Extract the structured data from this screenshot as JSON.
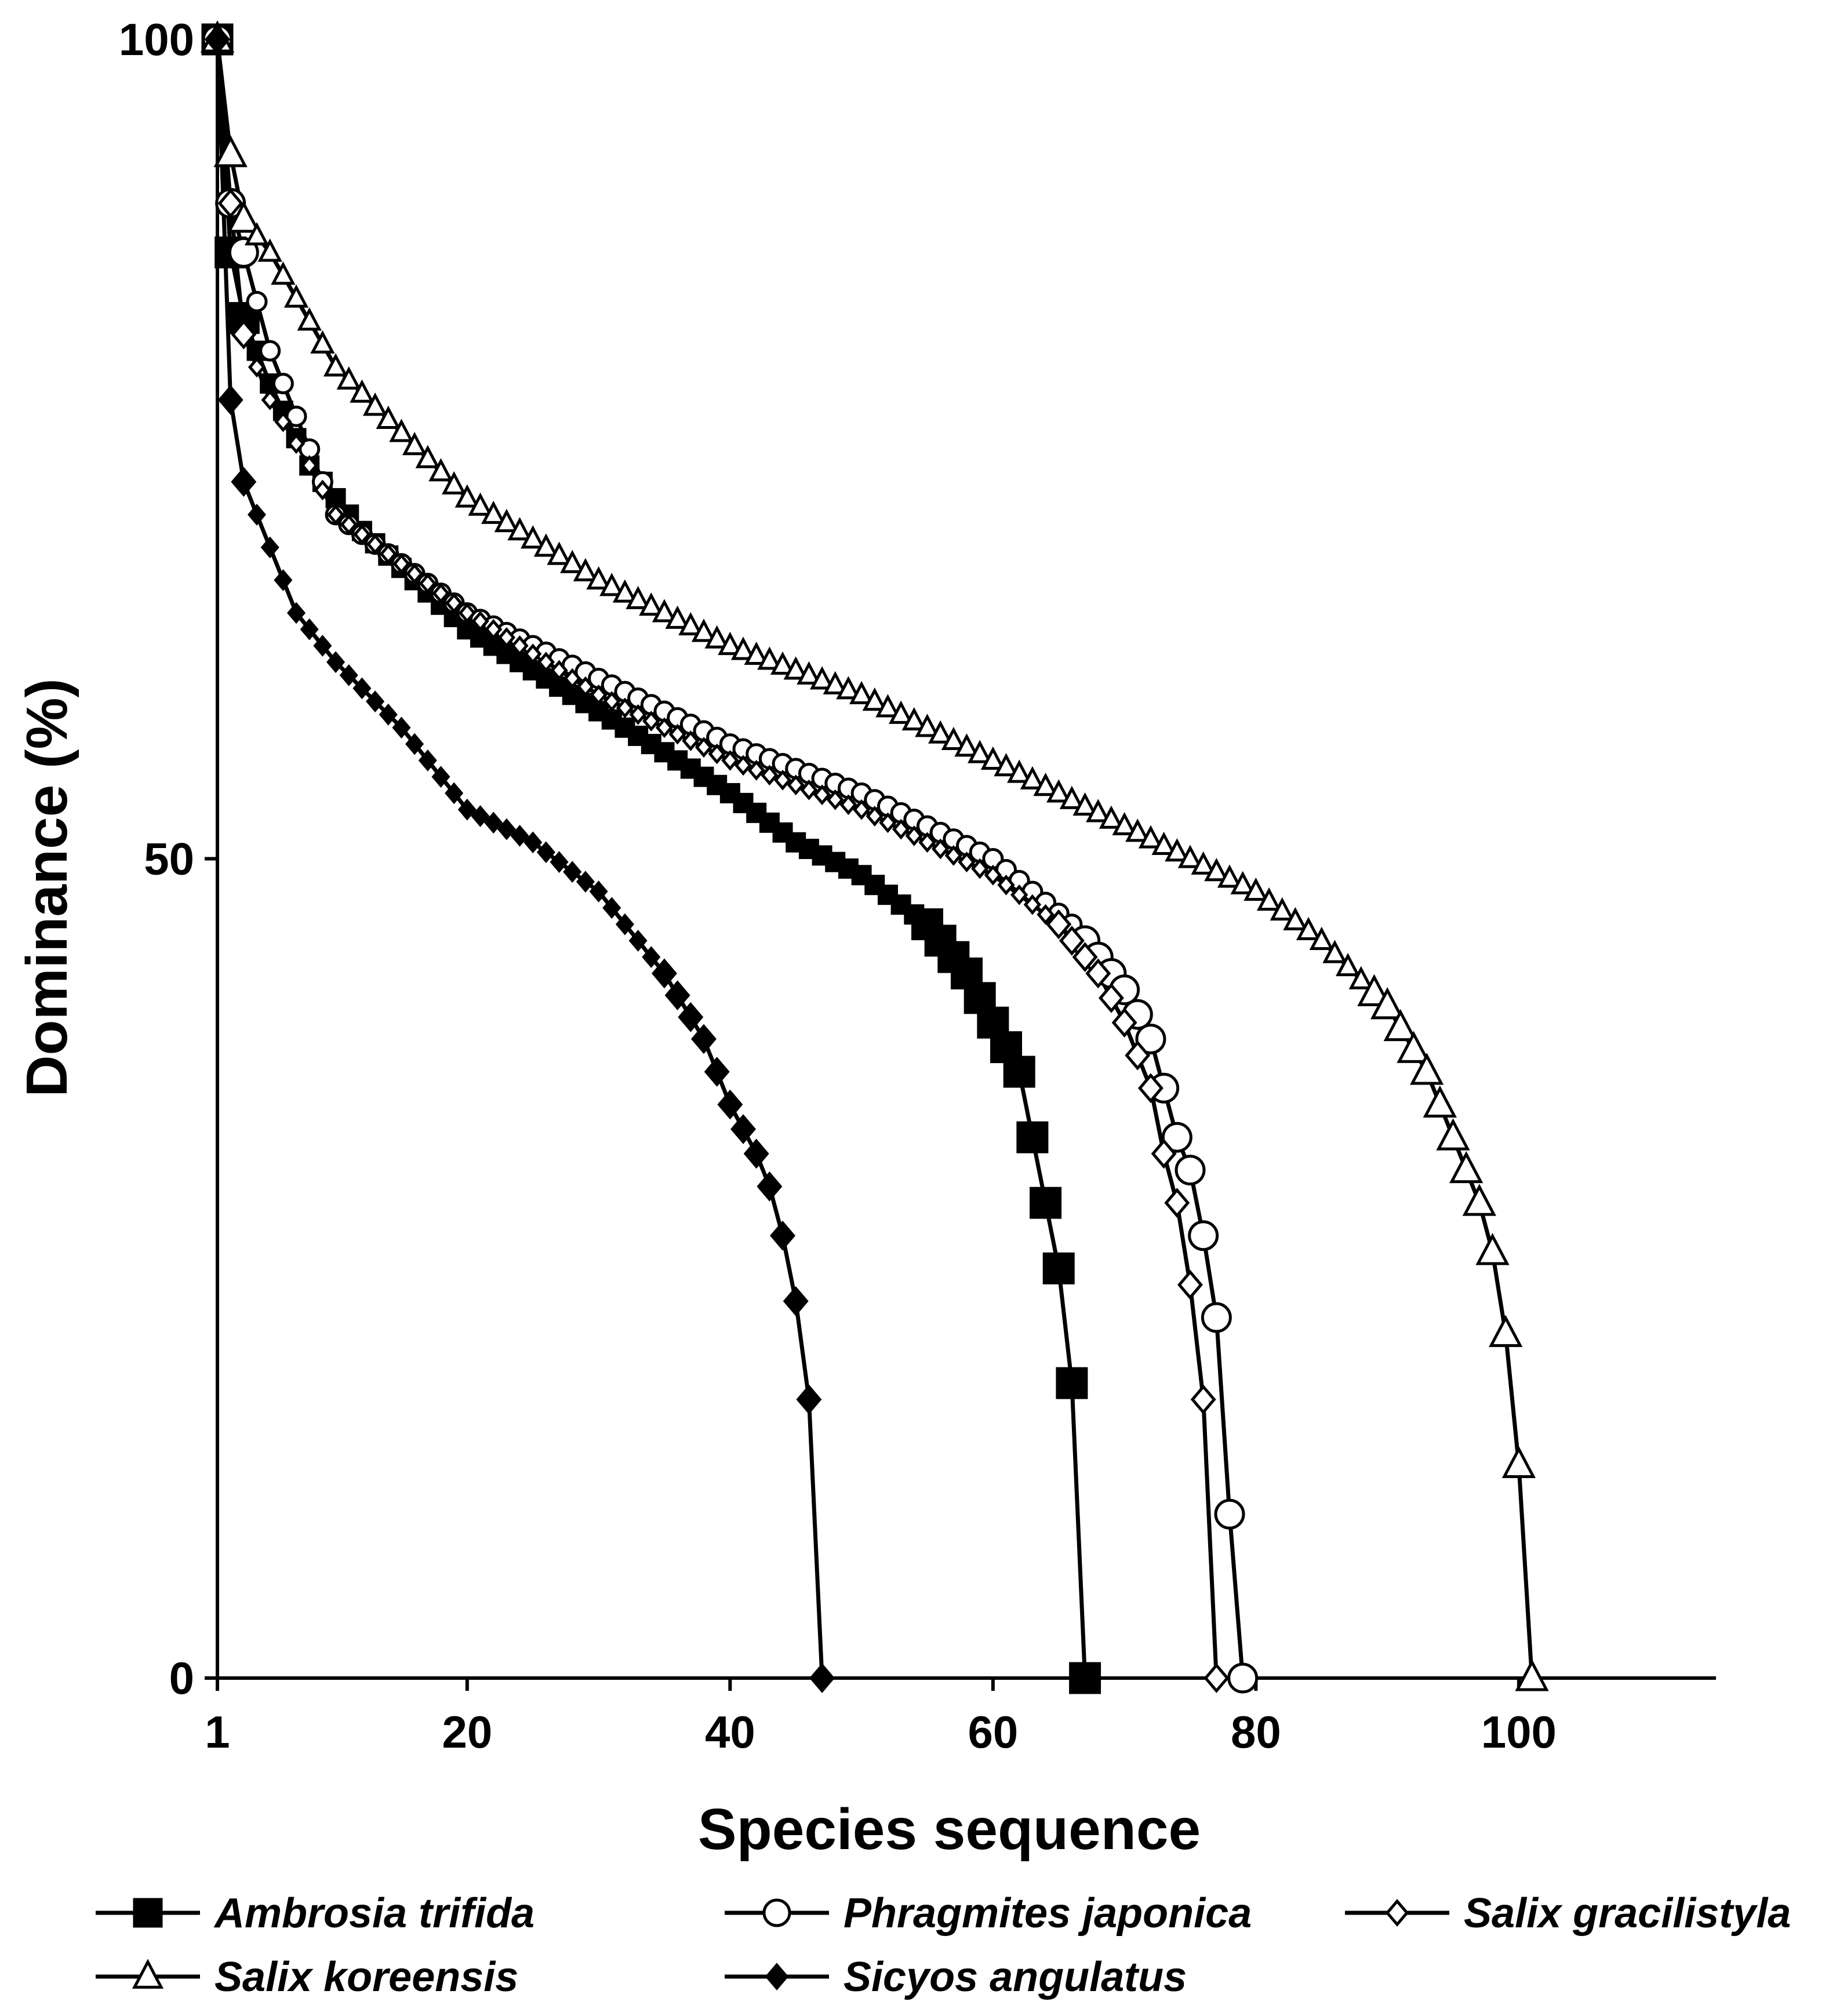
{
  "chart_data": {
    "type": "line",
    "title": "",
    "xlabel": "Species sequence",
    "ylabel": "Dominance (%)",
    "xlim": [
      1,
      115
    ],
    "ylim": [
      0,
      100
    ],
    "xticks": [
      1,
      20,
      40,
      60,
      80,
      100
    ],
    "xtick_labels": [
      "1",
      "20",
      "40",
      "60",
      "80",
      "100"
    ],
    "yticks": [
      0,
      50,
      100
    ],
    "ytick_labels": [
      "0",
      "50",
      "100"
    ],
    "grid": false,
    "legend_position": "bottom",
    "series": [
      {
        "name": "Ambrosia trifida",
        "marker": "filled-square",
        "n_species": 67,
        "points": [
          [
            1,
            100
          ],
          [
            2,
            87
          ],
          [
            3,
            83
          ],
          [
            5,
            79
          ],
          [
            8,
            74
          ],
          [
            12,
            70
          ],
          [
            20,
            64
          ],
          [
            30,
            59
          ],
          [
            40,
            54
          ],
          [
            45,
            51
          ],
          [
            50,
            49
          ],
          [
            55,
            46
          ],
          [
            58,
            43
          ],
          [
            60,
            40
          ],
          [
            62,
            37
          ],
          [
            63,
            33
          ],
          [
            64,
            29
          ],
          [
            65,
            25
          ],
          [
            66,
            18
          ],
          [
            67,
            0
          ]
        ]
      },
      {
        "name": "Phragmites japonica",
        "marker": "open-circle",
        "n_species": 79,
        "points": [
          [
            1,
            100
          ],
          [
            2,
            90
          ],
          [
            3,
            87
          ],
          [
            5,
            81
          ],
          [
            8,
            75
          ],
          [
            10,
            71
          ],
          [
            15,
            68
          ],
          [
            20,
            65
          ],
          [
            30,
            61
          ],
          [
            40,
            57
          ],
          [
            50,
            54
          ],
          [
            60,
            50
          ],
          [
            66,
            46
          ],
          [
            70,
            42
          ],
          [
            72,
            39
          ],
          [
            73,
            36
          ],
          [
            74,
            33
          ],
          [
            75,
            31
          ],
          [
            76,
            27
          ],
          [
            77,
            22
          ],
          [
            78,
            10
          ],
          [
            79,
            0
          ]
        ]
      },
      {
        "name": "Salix gracilistyla",
        "marker": "open-diamond",
        "n_species": 77,
        "points": [
          [
            1,
            100
          ],
          [
            2,
            90
          ],
          [
            3,
            82
          ],
          [
            5,
            78
          ],
          [
            8,
            74
          ],
          [
            10,
            71
          ],
          [
            15,
            68
          ],
          [
            20,
            65
          ],
          [
            30,
            60
          ],
          [
            40,
            56
          ],
          [
            50,
            53
          ],
          [
            60,
            49
          ],
          [
            65,
            46
          ],
          [
            68,
            43
          ],
          [
            70,
            40
          ],
          [
            72,
            36
          ],
          [
            73,
            32
          ],
          [
            74,
            29
          ],
          [
            75,
            24
          ],
          [
            76,
            17
          ],
          [
            77,
            0
          ]
        ]
      },
      {
        "name": "Salix koreensis",
        "marker": "open-triangle",
        "n_species": 101,
        "points": [
          [
            1,
            100
          ],
          [
            2,
            93
          ],
          [
            3,
            89
          ],
          [
            5,
            87
          ],
          [
            10,
            80
          ],
          [
            20,
            72
          ],
          [
            30,
            67
          ],
          [
            40,
            63
          ],
          [
            50,
            60
          ],
          [
            60,
            56
          ],
          [
            70,
            52
          ],
          [
            80,
            48
          ],
          [
            85,
            45
          ],
          [
            90,
            41
          ],
          [
            93,
            37
          ],
          [
            95,
            33
          ],
          [
            97,
            29
          ],
          [
            98,
            26
          ],
          [
            99,
            21
          ],
          [
            100,
            13
          ],
          [
            101,
            0
          ]
        ]
      },
      {
        "name": "Sicyos angulatus",
        "marker": "filled-diamond",
        "n_species": 47,
        "points": [
          [
            1,
            100
          ],
          [
            2,
            78
          ],
          [
            3,
            73
          ],
          [
            5,
            69
          ],
          [
            7,
            65
          ],
          [
            10,
            62
          ],
          [
            15,
            58
          ],
          [
            20,
            53
          ],
          [
            25,
            51
          ],
          [
            30,
            48
          ],
          [
            35,
            43
          ],
          [
            38,
            39
          ],
          [
            40,
            35
          ],
          [
            42,
            32
          ],
          [
            43,
            30
          ],
          [
            44,
            27
          ],
          [
            45,
            23
          ],
          [
            46,
            17
          ],
          [
            47,
            0
          ]
        ]
      }
    ]
  }
}
